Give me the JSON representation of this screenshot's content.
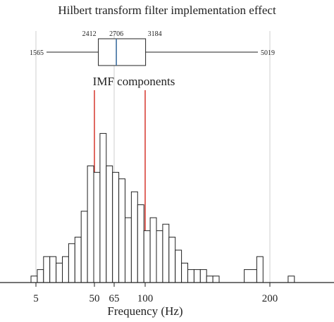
{
  "chart_data": {
    "type": "bar",
    "title": "Hilbert transform filter implementation effect",
    "subtitle": "IMF components",
    "xlabel": "Frequency (Hz)",
    "ylabel": "",
    "x_ticks": [
      5,
      50,
      65,
      100,
      200
    ],
    "x_tick_labels": [
      "5",
      "50",
      "65",
      "100",
      "200"
    ],
    "reference_lines": [
      50,
      100
    ],
    "grid_lines": [
      5,
      65,
      200
    ],
    "colors": {
      "bars": "#ffffff",
      "bar_edge": "#222222",
      "reference": "#d9433a",
      "grid": "#cfcfcf",
      "median": "#3f6fa0"
    },
    "boxplot": {
      "min": 1565,
      "q1": 2412,
      "median": 2706,
      "q3": 3184,
      "max": 5019,
      "labels": [
        "1565",
        "2412",
        "2706",
        "3184",
        "5019"
      ]
    },
    "histogram": {
      "bin_start": [
        3.5,
        4.5,
        5.5,
        6.5,
        7.5,
        8.5,
        9.5,
        10.5,
        11.5,
        12.5,
        13.5,
        14.5,
        15.5,
        16.5,
        17.5,
        18.5,
        19.5,
        20.5,
        21.5,
        22.5,
        23.5,
        24.5,
        25.5,
        26.5,
        27.5,
        28.5,
        29.5,
        30.5,
        31.5,
        32.5,
        37.5,
        39.5,
        44.5
      ],
      "bin_end": [
        4.5,
        5.5,
        6.5,
        7.5,
        8.5,
        9.5,
        10.5,
        11.5,
        12.5,
        13.5,
        14.5,
        15.5,
        16.5,
        17.5,
        18.5,
        19.5,
        20.5,
        21.5,
        22.5,
        23.5,
        24.5,
        25.5,
        26.5,
        27.5,
        28.5,
        29.5,
        30.5,
        31.5,
        32.5,
        33.5,
        39.5,
        40.5,
        45.5
      ],
      "counts": [
        1,
        2,
        4,
        4,
        3,
        4,
        6,
        7,
        11,
        18,
        17,
        23,
        18,
        17,
        16,
        10,
        14,
        12,
        8,
        10,
        8,
        9,
        7,
        5,
        3,
        2,
        2,
        2,
        1,
        1,
        2,
        4,
        1
      ]
    }
  }
}
